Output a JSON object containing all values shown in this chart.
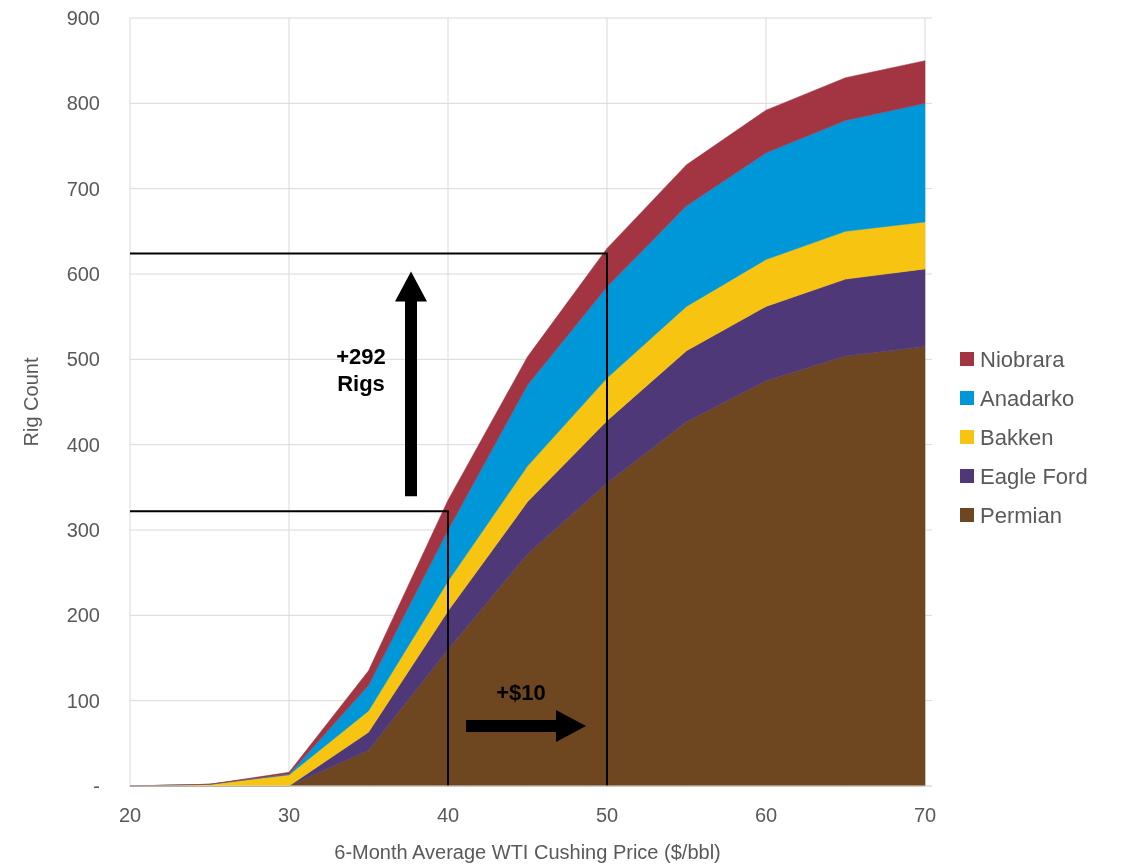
{
  "chart_data": {
    "type": "area",
    "stacked": true,
    "xlabel": "6-Month Average WTI Cushing Price ($/bbl)",
    "ylabel": "Rig Count",
    "x": [
      20,
      25,
      30,
      35,
      40,
      45,
      50,
      55,
      60,
      65,
      70
    ],
    "series": [
      {
        "name": "Permian",
        "color": "#6e4720",
        "values": [
          0,
          0,
          0,
          42,
          160,
          272,
          355,
          427,
          475,
          504,
          515
        ]
      },
      {
        "name": "Eagle Ford",
        "color": "#4e3878",
        "values": [
          0,
          0,
          0,
          21,
          45,
          61,
          73,
          83,
          87,
          90,
          91
        ]
      },
      {
        "name": "Bakken",
        "color": "#f7c511",
        "values": [
          0,
          2,
          13,
          25,
          35,
          42,
          50,
          52,
          55,
          56,
          55
        ]
      },
      {
        "name": "Anadarko",
        "color": "#0097d8",
        "values": [
          0,
          0,
          1,
          30,
          60,
          95,
          107,
          118,
          125,
          130,
          139
        ]
      },
      {
        "name": "Niobrara",
        "color": "#a33441",
        "values": [
          0,
          0,
          2,
          17,
          35,
          33,
          45,
          48,
          50,
          50,
          50
        ]
      },
      {
        "type": "line",
        "color": "#000000",
        "x": [
          20,
          40,
          40
        ],
        "values": [
          322,
          322,
          0
        ]
      },
      {
        "type": "line",
        "color": "#000000",
        "x": [
          20,
          50,
          50
        ],
        "values": [
          624,
          624,
          0
        ]
      }
    ],
    "xlim": [
      20,
      70
    ],
    "xticks": [
      20,
      30,
      40,
      50,
      60,
      70
    ],
    "ylim": [
      0,
      900
    ],
    "yticks": [
      {
        "value": 0,
        "label": "-"
      },
      100,
      200,
      300,
      400,
      500,
      600,
      700,
      800,
      900
    ],
    "grid": true,
    "legend": "right",
    "annotations": [
      "+292 Rigs",
      "+$10"
    ]
  }
}
